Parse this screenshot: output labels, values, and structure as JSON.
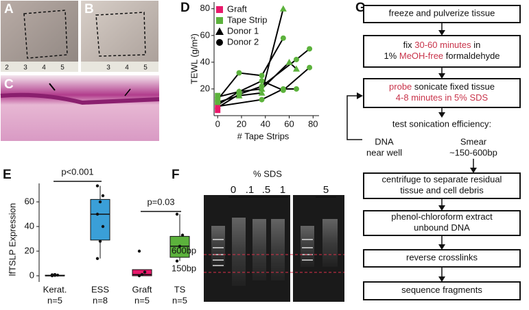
{
  "panel_labels": [
    "A",
    "B",
    "C",
    "D",
    "E",
    "F",
    "G"
  ],
  "photos": {
    "A_ruler": [
      "2",
      "3",
      "4",
      "5"
    ],
    "B_ruler": [
      "3",
      "4",
      "5"
    ]
  },
  "chart_data": [
    {
      "type": "line",
      "y_label": "TEWL (g/m²)",
      "x_label": "# Tape Strips",
      "xlim": [
        -3,
        85
      ],
      "ylim": [
        0,
        85
      ],
      "xticks": [
        0,
        20,
        40,
        60,
        80
      ],
      "yticks": [
        20,
        40,
        60,
        80
      ],
      "line_color": "#000000",
      "marker_color": "#5cb23c",
      "series": [
        {
          "name": "Graft",
          "color": "#e8196b",
          "marker": "square",
          "x": [
            0,
            0
          ],
          "values": [
            4,
            7
          ]
        },
        {
          "name": "Tape Strip",
          "color": "#5cb23c",
          "marker": "square",
          "x": [
            0,
            0,
            0
          ],
          "values": [
            10,
            12,
            15
          ]
        },
        {
          "name": "Donor 1",
          "color": "#000000",
          "marker": "triangle",
          "x": [
            18,
            37,
            55,
            18,
            37,
            60,
            66
          ],
          "values": [
            15,
            17,
            80,
            18,
            20,
            40,
            35
          ]
        },
        {
          "name": "Donor 2",
          "color": "#000000",
          "marker": "circle",
          "x": [
            18,
            37,
            55,
            18,
            37,
            55,
            77,
            18,
            37,
            66,
            77,
            37,
            55,
            66
          ],
          "values": [
            32,
            30,
            58,
            18,
            26,
            19,
            36,
            16,
            22,
            42,
            50,
            12,
            20,
            20
          ]
        }
      ],
      "lines": [
        {
          "x": [
            0,
            18,
            37,
            55
          ],
          "values": [
            10,
            15,
            17,
            80
          ]
        },
        {
          "x": [
            0,
            18,
            37,
            60,
            66
          ],
          "values": [
            14,
            18,
            20,
            40,
            35
          ]
        },
        {
          "x": [
            0,
            18,
            37,
            55
          ],
          "values": [
            12,
            32,
            30,
            58
          ]
        },
        {
          "x": [
            0,
            18,
            37,
            55,
            77
          ],
          "values": [
            8,
            18,
            26,
            19,
            36
          ]
        },
        {
          "x": [
            0,
            18,
            37,
            66,
            77
          ],
          "values": [
            6,
            16,
            22,
            42,
            50
          ]
        },
        {
          "x": [
            0,
            37,
            55,
            66
          ],
          "values": [
            7,
            12,
            20,
            20
          ]
        }
      ]
    },
    {
      "type": "box",
      "y_label": "lfTSLP Expression",
      "categories": [
        "Kerat.",
        "ESS",
        "Graft",
        "TS"
      ],
      "n_labels": [
        "n=5",
        "n=8",
        "n=5",
        "n=5"
      ],
      "colors": [
        "#9e9e9e",
        "#3a9fd8",
        "#e8196b",
        "#5cb23c"
      ],
      "ylim": [
        -5,
        75
      ],
      "yticks": [
        0,
        20,
        40,
        60
      ],
      "boxes": [
        {
          "min": 0,
          "q1": 0,
          "median": 0,
          "q3": 0.5,
          "max": 1,
          "points": [
            0,
            0.3,
            0.5,
            0.8,
            1
          ]
        },
        {
          "min": 14,
          "q1": 29,
          "median": 50,
          "q3": 62,
          "max": 73,
          "points": [
            14,
            28,
            40,
            50,
            60,
            65,
            73
          ]
        },
        {
          "min": 0,
          "q1": 0,
          "median": 1,
          "q3": 5,
          "max": 5,
          "points": [
            0,
            1,
            3,
            20
          ]
        },
        {
          "min": 12,
          "q1": 15,
          "median": 24,
          "q3": 32,
          "max": 50,
          "points": [
            12,
            24,
            33,
            50
          ]
        }
      ],
      "significance": [
        {
          "label": "p<0.001",
          "from": 0,
          "to": 1
        },
        {
          "label": "p=0.03",
          "from": 2,
          "to": 3
        }
      ]
    }
  ],
  "gel": {
    "title": "% SDS",
    "lanes": [
      "0",
      ".1",
      ".5",
      "1"
    ],
    "lane_right": "5",
    "markers": [
      "600bp",
      "150bp"
    ]
  },
  "flow": {
    "steps": [
      {
        "lines": [
          [
            {
              "text": "freeze and pulverize tissue"
            }
          ]
        ]
      },
      {
        "lines": [
          [
            {
              "text": "fix "
            },
            {
              "text": "30-60 minutes",
              "color": "#c8334a"
            },
            {
              "text": " in"
            }
          ],
          [
            {
              "text": "1% "
            },
            {
              "text": "MeOH-free",
              "color": "#c8334a"
            },
            {
              "text": " formaldehyde"
            }
          ]
        ]
      },
      {
        "lines": [
          [
            {
              "text": "probe",
              "color": "#c8334a"
            },
            {
              "text": " sonicate fixed tissue"
            }
          ],
          [
            {
              "text": "4-8 minutes in 5% SDS",
              "color": "#c8334a"
            }
          ]
        ]
      },
      {
        "lines": [
          [
            {
              "text": "centrifuge to separate residual"
            }
          ],
          [
            {
              "text": "tissue and cell debris"
            }
          ]
        ]
      },
      {
        "lines": [
          [
            {
              "text": "phenol-chloroform extract"
            }
          ],
          [
            {
              "text": "unbound DNA"
            }
          ]
        ]
      },
      {
        "lines": [
          [
            {
              "text": "reverse crosslinks"
            }
          ]
        ]
      },
      {
        "lines": [
          [
            {
              "text": "sequence fragments"
            }
          ]
        ]
      }
    ],
    "branch": {
      "title": "test sonication efficiency:",
      "left": [
        "DNA",
        "near well"
      ],
      "right": [
        "Smear",
        "~150-600bp"
      ]
    }
  }
}
